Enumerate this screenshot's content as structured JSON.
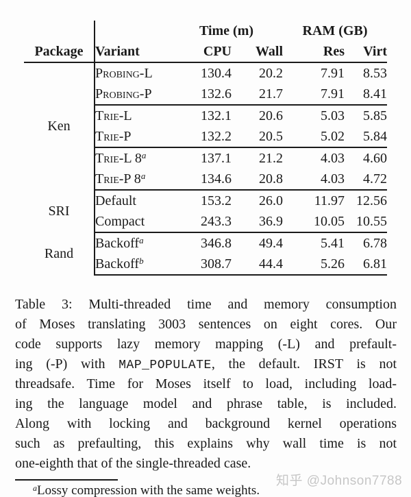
{
  "table": {
    "span_headers": {
      "time": "Time (m)",
      "ram": "RAM (GB)"
    },
    "col_headers": {
      "package": "Package",
      "variant": "Variant",
      "cpu": "CPU",
      "wall": "Wall",
      "res": "Res",
      "virt": "Virt"
    },
    "groups": [
      {
        "package": "Ken"
      },
      {
        "package": "SRI"
      },
      {
        "package": "Rand"
      }
    ],
    "rows": [
      {
        "variant": "Probing-L",
        "sup": "",
        "cpu": "130.4",
        "wall": "20.2",
        "res": "7.91",
        "virt": "8.53"
      },
      {
        "variant": "Probing-P",
        "sup": "",
        "cpu": "132.6",
        "wall": "21.7",
        "res": "7.91",
        "virt": "8.41"
      },
      {
        "variant": "Trie-L",
        "sup": "",
        "cpu": "132.1",
        "wall": "20.6",
        "res": "5.03",
        "virt": "5.85"
      },
      {
        "variant": "Trie-P",
        "sup": "",
        "cpu": "132.2",
        "wall": "20.5",
        "res": "5.02",
        "virt": "5.84"
      },
      {
        "variant": "Trie-L 8",
        "sup": "a",
        "cpu": "137.1",
        "wall": "21.2",
        "res": "4.03",
        "virt": "4.60"
      },
      {
        "variant": "Trie-P 8",
        "sup": "a",
        "cpu": "134.6",
        "wall": "20.8",
        "res": "4.03",
        "virt": "4.72"
      },
      {
        "variant": "Default",
        "sup": "",
        "cpu": "153.2",
        "wall": "26.0",
        "res": "11.97",
        "virt": "12.56"
      },
      {
        "variant": "Compact",
        "sup": "",
        "cpu": "243.3",
        "wall": "36.9",
        "res": "10.05",
        "virt": "10.55"
      },
      {
        "variant": "Backoff",
        "sup": "a",
        "cpu": "346.8",
        "wall": "49.4",
        "res": "5.41",
        "virt": "6.78"
      },
      {
        "variant": "Backoff",
        "sup": "b",
        "cpu": "308.7",
        "wall": "44.4",
        "res": "5.26",
        "virt": "6.81"
      }
    ]
  },
  "caption": {
    "lines": [
      "Table 3: Multi-threaded time and memory consumption",
      "of Moses translating 3003 sentences on eight cores. Our",
      "code supports lazy memory mapping (-L) and prefault-",
      {
        "before": "ing (-P) with ",
        "code": "MAP_POPULATE",
        "after": ", the default. IRST is not"
      },
      "threadsafe. Time for Moses itself to load, including load-",
      "ing the language model and phrase table, is included.",
      "Along with locking and background kernel operations",
      "such as prefaulting, this explains why wall time is not",
      "one-eighth that of the single-threaded case."
    ]
  },
  "footnote": {
    "marker": "a",
    "text": "Lossy compression with the same weights."
  },
  "watermark": {
    "text": "知乎 @Johnson7788"
  },
  "colors": {
    "text": "#1a1a1a",
    "rule": "#1a1a1a",
    "background": "#fdfdfd",
    "watermark": "#c6c6c6"
  }
}
